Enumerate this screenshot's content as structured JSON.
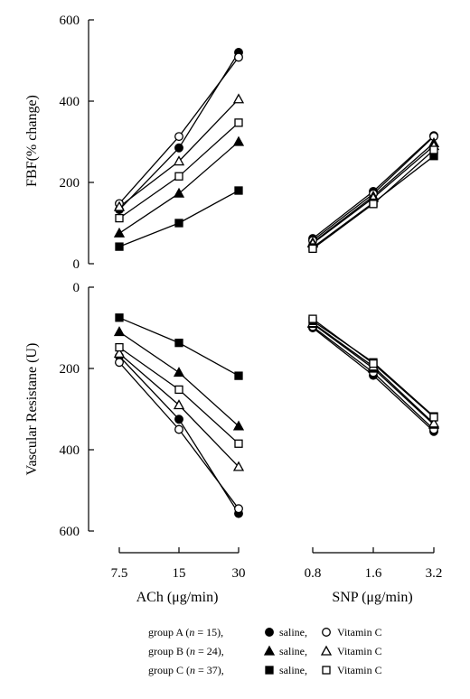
{
  "chart_data": {
    "type": "line",
    "x_axes": [
      {
        "label_prefix": "ACh (",
        "label_unit": "μg/min",
        "label_suffix": ")",
        "categories": [
          "7.5",
          "15",
          "30"
        ]
      },
      {
        "label_prefix": "SNP (",
        "label_unit": "μg/min",
        "label_suffix": ")",
        "categories": [
          "0.8",
          "1.6",
          "3.2"
        ]
      }
    ],
    "panels": [
      {
        "id": "fbf",
        "ylabel": "FBF(% change)",
        "ylim": [
          0,
          600
        ],
        "y_ticks": [
          "0",
          "200",
          "400",
          "600"
        ],
        "inverted": false,
        "series": [
          {
            "key": "A-saline",
            "ach": [
              133,
              285,
              520
            ],
            "snp": [
              62,
              178,
              315
            ]
          },
          {
            "key": "A-vitc",
            "ach": [
              148,
              313,
              508
            ],
            "snp": [
              57,
              172,
              313
            ]
          },
          {
            "key": "B-saline",
            "ach": [
              75,
              173,
              300
            ],
            "snp": [
              52,
              166,
              297
            ]
          },
          {
            "key": "B-vitc",
            "ach": [
              140,
              252,
              405
            ],
            "snp": [
              50,
              162,
              290
            ]
          },
          {
            "key": "C-saline",
            "ach": [
              42,
              100,
              180
            ],
            "snp": [
              40,
              150,
              265
            ]
          },
          {
            "key": "C-vitc",
            "ach": [
              112,
              215,
              347
            ],
            "snp": [
              37,
              147,
              280
            ]
          }
        ]
      },
      {
        "id": "resistance",
        "ylabel": "Vascular Resistane (U)",
        "ylim": [
          0,
          600
        ],
        "y_ticks": [
          "0",
          "200",
          "400",
          "600"
        ],
        "inverted": true,
        "series": [
          {
            "key": "A-saline",
            "ach": [
              170,
              325,
              557
            ],
            "snp": [
              100,
              217,
              355
            ]
          },
          {
            "key": "A-vitc",
            "ach": [
              185,
              350,
              545
            ],
            "snp": [
              97,
              210,
              350
            ]
          },
          {
            "key": "B-saline",
            "ach": [
              110,
              210,
              342
            ],
            "snp": [
              90,
              200,
              338
            ]
          },
          {
            "key": "B-vitc",
            "ach": [
              163,
              290,
              442
            ],
            "snp": [
              88,
              195,
              335
            ]
          },
          {
            "key": "C-saline",
            "ach": [
              75,
              137,
              218
            ],
            "snp": [
              83,
              185,
              318
            ]
          },
          {
            "key": "C-vitc",
            "ach": [
              148,
              252,
              385
            ],
            "snp": [
              78,
              188,
              320
            ]
          }
        ]
      }
    ],
    "legend": [
      {
        "group": "group A",
        "n": "15",
        "saline_key": "A-saline",
        "vitc_key": "A-vitc"
      },
      {
        "group": "group B",
        "n": "24",
        "saline_key": "B-saline",
        "vitc_key": "B-vitc"
      },
      {
        "group": "group C",
        "n": "37",
        "saline_key": "C-saline",
        "vitc_key": "C-vitc"
      }
    ],
    "legend_terms": {
      "n_symbol": "n",
      "equals": " = ",
      "saline": "saline,",
      "vitc": "Vitamin C"
    },
    "markers": {
      "A-saline": "filled-circle",
      "A-vitc": "open-circle",
      "B-saline": "filled-triangle",
      "B-vitc": "open-triangle",
      "C-saline": "filled-square",
      "C-vitc": "open-square"
    }
  }
}
